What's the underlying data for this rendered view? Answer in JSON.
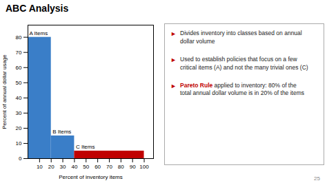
{
  "chart_data": {
    "type": "bar",
    "title": "ABC Analysis",
    "categories": [
      "A Items",
      "B Items",
      "C Items"
    ],
    "bins": [
      0,
      20,
      40,
      100
    ],
    "values": [
      80,
      15,
      5
    ],
    "colors": [
      "#3a7ec8",
      "#3a7ec8",
      "#c00000"
    ],
    "xlabel": "Percent of inventory items",
    "ylabel": "Percent of annual dollar usage",
    "xlim": [
      0,
      108
    ],
    "ylim": [
      0,
      88
    ],
    "xticks": [
      10,
      20,
      30,
      40,
      50,
      60,
      70,
      80,
      90,
      100
    ],
    "yticks": [
      0,
      10,
      20,
      30,
      40,
      50,
      60,
      70,
      80
    ],
    "grid": false,
    "annotations": [
      {
        "bullet": "►",
        "bullet_color": "#c00000",
        "text": "Divides inventory into classes based on annual\ndollar volume"
      },
      {
        "bullet": "►",
        "bullet_color": "#c00000",
        "text": "Used to establish policies that focus on a few\ncritical items (A) and not the many trivial ones (C)"
      },
      {
        "bullet": "►",
        "bullet_color": "#c00000",
        "lead": "Pareto Rule",
        "lead_color": "#c00000",
        "text": " applied to inventory: 80% of the\ntotal annual dollar volume is in 20% of the items"
      }
    ],
    "page_number": "25"
  }
}
